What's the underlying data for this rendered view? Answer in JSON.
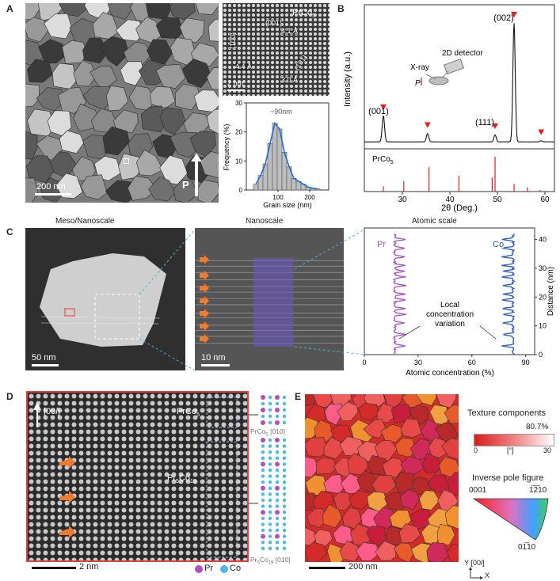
{
  "panel_a": {
    "label": "A",
    "scale_main": "200 nm",
    "p_label": "P",
    "hrtem": {
      "phase": "PrCo",
      "phase_sub": "5",
      "d001": "(001)",
      "d001_val": "4.1 Å",
      "d100": "(100)",
      "d100_val": "4.4 Å",
      "d101": "(101)",
      "d101_val": "3.0 Å",
      "scale": "2 nm"
    },
    "histogram": {
      "annotation": "~90nm",
      "xlabel": "Grain size (nm)",
      "ylabel": "Frequency (%)",
      "x_ticks": [
        "100",
        "200"
      ],
      "y_ticks": [
        "0",
        "10",
        "20",
        "30"
      ]
    }
  },
  "panel_b": {
    "label": "B",
    "ylabel": "Intensity (a.u.)",
    "xlabel": "2θ (Deg.)",
    "peak_002": "(002)",
    "peak_001": "(001)",
    "peak_111": "(111)",
    "detector": "2D detector",
    "xray": "X-ray",
    "p_label": "P",
    "ref_phase": "PrCo",
    "ref_phase_sub": "5",
    "x_ticks": [
      "30",
      "40",
      "50",
      "60"
    ]
  },
  "panel_c": {
    "label": "C",
    "title_1": "Meso/Nanoscale",
    "title_2": "Nanoscale",
    "title_3": "Atomic scale",
    "scale_1": "50 nm",
    "scale_2": "10 nm",
    "pr": "Pr",
    "co": "Co",
    "annotation_1": "Local",
    "annotation_2": "concentration",
    "annotation_3": "variation",
    "xlabel": "Atomic concentration (%)",
    "ylabel": "Distance (nm)",
    "x_ticks": [
      "0",
      "30",
      "60",
      "90"
    ],
    "y_ticks": [
      "0",
      "10",
      "20",
      "30",
      "40"
    ]
  },
  "panel_d": {
    "label": "D",
    "direction": "[00",
    "direction_l": "l",
    "direction_end": "]",
    "phase_top": "PrCo",
    "phase_top_sub": "5",
    "phase_mid_a": "Pr",
    "phase_mid_sub1": "5",
    "phase_mid_b": "Co",
    "phase_mid_sub2": "19",
    "model_top": "PrCo",
    "model_top_sub": "5",
    "model_top_zone": " [010]",
    "model_bot_a": "Pr",
    "model_bot_sub1": "5",
    "model_bot_b": "Co",
    "model_bot_sub2": "19",
    "model_bot_zone": " [010]",
    "scale": "2 nm",
    "legend_pr": "Pr",
    "legend_co": "Co"
  },
  "panel_e": {
    "label": "E",
    "scale": "200 nm",
    "texture_title": "Texture components",
    "texture_value": "80.7%",
    "colorbar_min": "0",
    "colorbar_mid": "[°]",
    "colorbar_max": "30",
    "ipf_title": "Inverse pole figure",
    "ipf_0001": "0001",
    "ipf_1210": "1̅2̅10",
    "ipf_0110": "01̅10",
    "axis_y": "Y",
    "axis_y_dir": "[00",
    "axis_y_l": "l",
    "axis_y_end": "]",
    "axis_x": "X"
  },
  "chart_data": [
    {
      "type": "bar",
      "title": "",
      "xlabel": "Grain size (nm)",
      "ylabel": "Frequency (%)",
      "x": [
        30,
        45,
        60,
        75,
        90,
        105,
        120,
        135,
        150,
        165,
        180,
        195,
        210,
        225
      ],
      "values": [
        2,
        5,
        9,
        16,
        23,
        21,
        13,
        8,
        4,
        3,
        2,
        1,
        0.6,
        0.4
      ],
      "xlim": [
        0,
        260
      ],
      "ylim": [
        0,
        30
      ]
    },
    {
      "type": "line",
      "title": "",
      "xlabel": "2θ (Deg.)",
      "ylabel": "Intensity (a.u.)",
      "xlim": [
        22,
        62
      ],
      "peaks": [
        {
          "two_theta": 26.0,
          "intensity": 0.22,
          "label": "(001)"
        },
        {
          "two_theta": 35.3,
          "intensity": 0.07,
          "label": ""
        },
        {
          "two_theta": 49.5,
          "intensity": 0.06,
          "label": "(111)"
        },
        {
          "two_theta": 53.5,
          "intensity": 1.0,
          "label": "(002)"
        },
        {
          "two_theta": 59.2,
          "intensity": 0.01,
          "label": ""
        }
      ],
      "reference_lines": [
        {
          "two_theta": 26.0,
          "intensity": 0.15
        },
        {
          "two_theta": 30.3,
          "intensity": 0.3
        },
        {
          "two_theta": 35.6,
          "intensity": 0.7
        },
        {
          "two_theta": 41.9,
          "intensity": 0.45
        },
        {
          "two_theta": 48.9,
          "intensity": 0.4
        },
        {
          "two_theta": 49.5,
          "intensity": 1.0
        },
        {
          "two_theta": 53.5,
          "intensity": 0.22
        },
        {
          "two_theta": 56.3,
          "intensity": 0.12
        },
        {
          "two_theta": 59.0,
          "intensity": 0.05
        }
      ]
    },
    {
      "type": "line",
      "title": "",
      "xlabel": "Atomic concentration (%)",
      "ylabel": "Distance (nm)",
      "xlim": [
        0,
        95
      ],
      "ylim": [
        0,
        44
      ],
      "series": [
        {
          "name": "Pr",
          "baseline_percent": 17
        },
        {
          "name": "Co",
          "baseline_percent": 83
        }
      ]
    }
  ]
}
